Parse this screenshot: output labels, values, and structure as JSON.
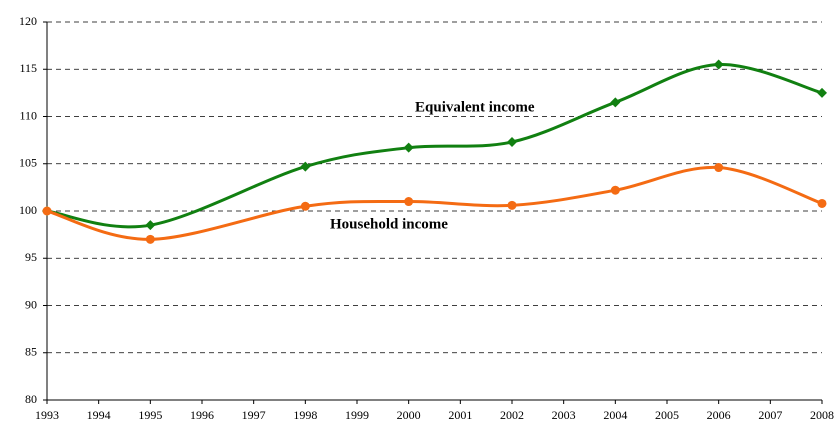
{
  "chart_data": {
    "type": "line",
    "x": [
      1993,
      1995,
      1998,
      2000,
      2002,
      2004,
      2006,
      2008
    ],
    "series": [
      {
        "name": "Equivalent income",
        "color": "#118011",
        "marker": "diamond",
        "values": [
          100,
          98.5,
          104.7,
          106.7,
          107.3,
          111.5,
          115.5,
          112.5
        ]
      },
      {
        "name": "Household income",
        "color": "#f46b13",
        "marker": "circle",
        "values": [
          100,
          97,
          100.5,
          101,
          100.6,
          102.2,
          104.6,
          100.8
        ]
      }
    ],
    "xlim": [
      1993,
      2008
    ],
    "xticks": [
      1993,
      1994,
      1995,
      1996,
      1997,
      1998,
      1999,
      2000,
      2001,
      2002,
      2003,
      2004,
      2005,
      2006,
      2007,
      2008
    ],
    "ylim": [
      80,
      120
    ],
    "yticks": [
      80,
      85,
      90,
      95,
      100,
      105,
      110,
      115,
      120
    ],
    "grid": true
  }
}
